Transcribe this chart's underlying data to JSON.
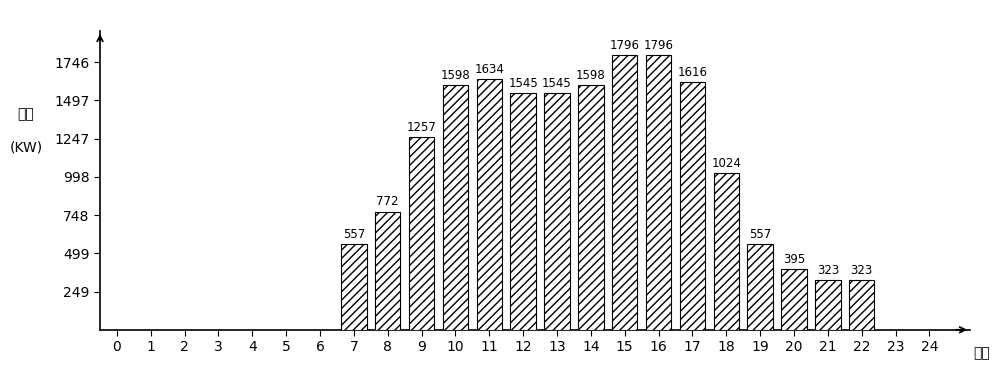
{
  "hours": [
    7,
    8,
    9,
    10,
    11,
    12,
    13,
    14,
    15,
    16,
    17,
    18,
    19,
    20,
    21,
    22
  ],
  "values": [
    557,
    772,
    1257,
    1598,
    1634,
    1545,
    1545,
    1598,
    1796,
    1796,
    1616,
    1024,
    557,
    395,
    323,
    323
  ],
  "yticks": [
    249,
    499,
    748,
    998,
    1247,
    1497,
    1746
  ],
  "xticks": [
    0,
    1,
    2,
    3,
    4,
    5,
    6,
    7,
    8,
    9,
    10,
    11,
    12,
    13,
    14,
    15,
    16,
    17,
    18,
    19,
    20,
    21,
    22,
    23,
    24
  ],
  "ylabel_line1": "负荷",
  "ylabel_line2": "(KW)",
  "xlabel": "时刻",
  "hatch_pattern": "////",
  "bar_color": "white",
  "bar_edge_color": "black",
  "background_color": "white",
  "ylim_max": 1950,
  "xlim_min": -0.5,
  "xlim_max": 25.2,
  "figsize": [
    10.0,
    3.88
  ],
  "dpi": 100,
  "bar_width": 0.75,
  "label_fontsize": 8.5,
  "axis_label_fontsize": 10,
  "tick_fontsize": 9,
  "arrow_color": "black"
}
